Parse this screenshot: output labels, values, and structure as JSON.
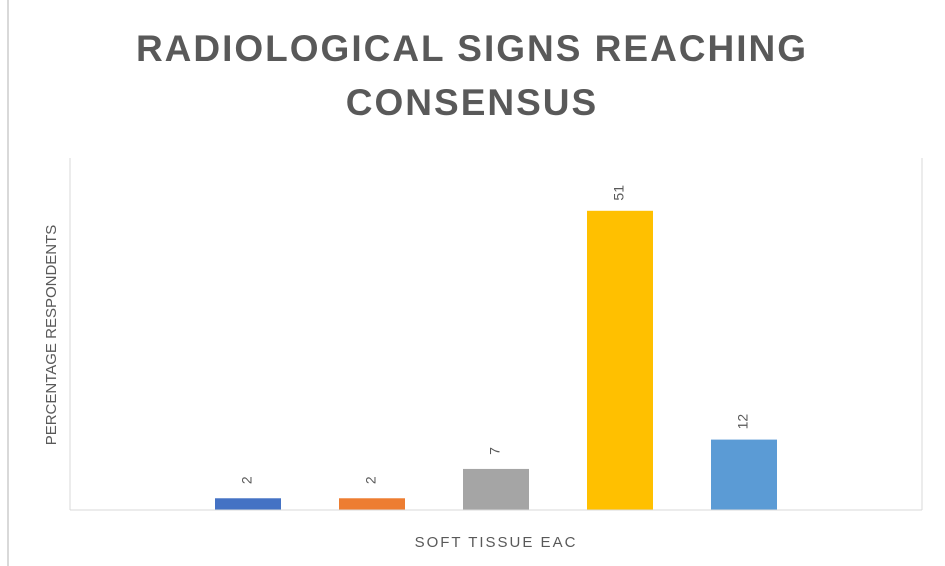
{
  "chart_data": {
    "type": "bar",
    "title": "RADIOLOGICAL SIGNS REACHING CONSENSUS",
    "y_label": "PERCENTAGE RESPONDENTS",
    "categories": [
      "SOFT TISSUE EAC"
    ],
    "series": [
      {
        "color": "#4472c4",
        "values": [
          2
        ]
      },
      {
        "color": "#ed7d31",
        "values": [
          2
        ]
      },
      {
        "color": "#a5a5a5",
        "values": [
          7
        ]
      },
      {
        "color": "#ffc000",
        "values": [
          51
        ]
      },
      {
        "color": "#5b9bd5",
        "values": [
          12
        ]
      }
    ],
    "ylim": [
      0,
      60
    ]
  }
}
